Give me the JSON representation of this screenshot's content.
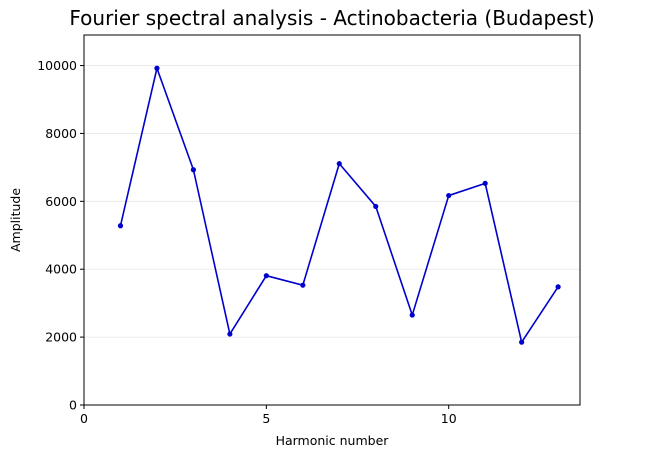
{
  "chart_data": {
    "type": "line",
    "title": "Fourier spectral analysis - Actinobacteria (Budapest)",
    "xlabel": "Harmonic number",
    "ylabel": "Amplitude",
    "xlim": [
      0,
      13.6
    ],
    "ylim": [
      0,
      10900
    ],
    "x_ticks": [
      0,
      5,
      10
    ],
    "y_ticks": [
      0,
      2000,
      4000,
      6000,
      8000,
      10000
    ],
    "grid": "horizontal",
    "series": [
      {
        "name": "Amplitude",
        "color": "#0000cc",
        "x": [
          1,
          2,
          3,
          4,
          5,
          6,
          7,
          8,
          9,
          10,
          11,
          12,
          13
        ],
        "values": [
          5280,
          9920,
          6930,
          2090,
          3810,
          3530,
          7110,
          5850,
          2650,
          6170,
          6530,
          1850,
          3480
        ]
      }
    ]
  }
}
